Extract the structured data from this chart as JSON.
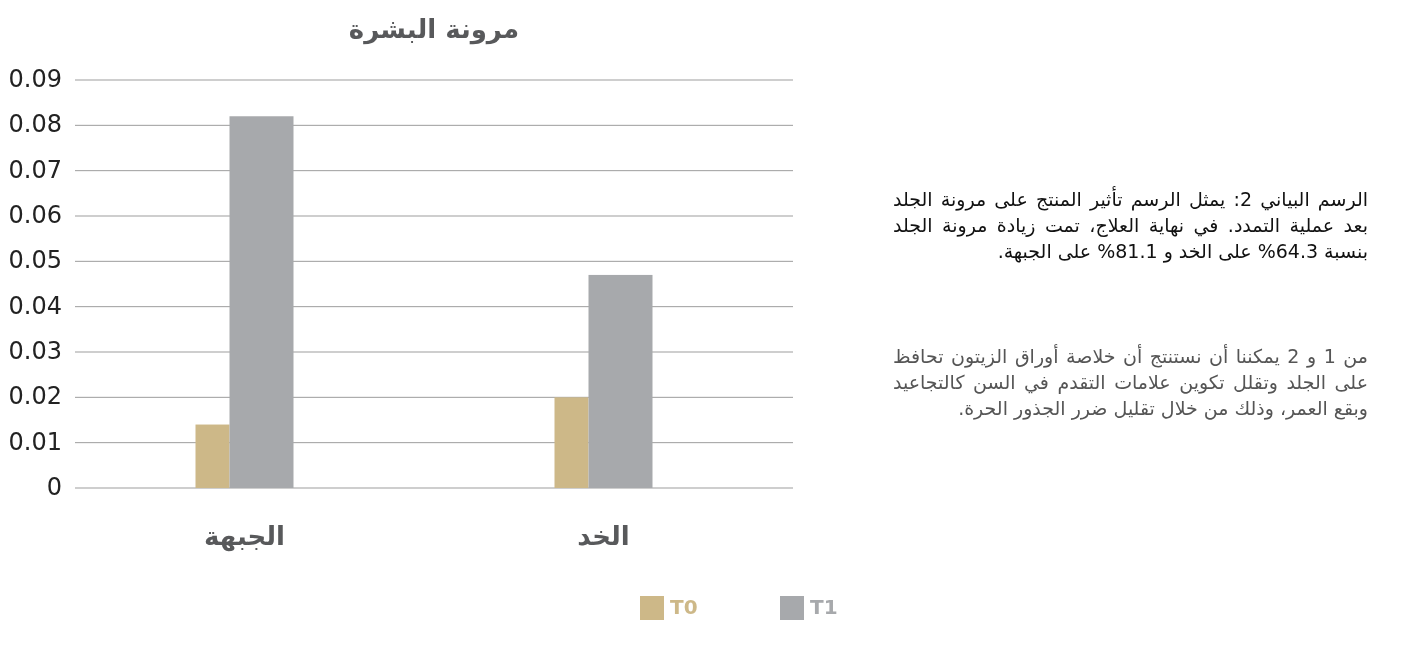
{
  "chart_data": {
    "type": "bar",
    "title": "مرونة البشرة",
    "categories": [
      "الجبهة",
      "الخد"
    ],
    "series": [
      {
        "name": "T0",
        "color": "#cdb888",
        "values": [
          0.014,
          0.02
        ]
      },
      {
        "name": "T1",
        "color": "#a7a9ac",
        "values": [
          0.082,
          0.047
        ]
      }
    ],
    "ylim": [
      0,
      0.09
    ],
    "yticks": [
      0,
      0.01,
      0.02,
      0.03,
      0.04,
      0.05,
      0.06,
      0.07,
      0.08,
      0.09
    ],
    "grid": "y",
    "legend": "bottom",
    "annotations": [
      "الرسم البياني 2: يمثل الرسم تأثير المنتج على مرونة الجلد بعد عملية التمدد. في نهاية العلاج، تمت زيادة مرونة الجلد بنسبة 64.3% على الخد و 81.1% على الجبهة.",
      "من 1 و 2 يمكننا أن نستنتج أن خلاصة أوراق الزيتون تحافظ على الجلد وتقلل تكوين علامات التقدم في السن كالتجاعيد وبقع العمر، وذلك من خلال تقليل ضرر الجذور الحرة."
    ]
  }
}
